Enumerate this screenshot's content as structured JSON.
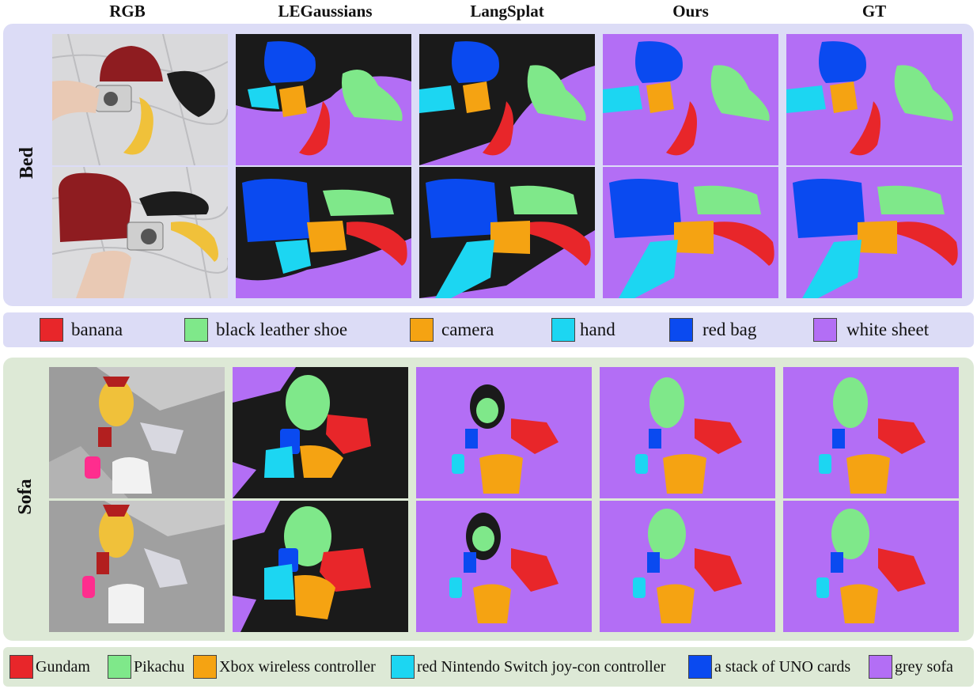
{
  "columns": [
    "RGB",
    "LEGaussians",
    "LangSplat",
    "Ours",
    "GT"
  ],
  "rows": {
    "bed": "Bed",
    "sofa": "Sofa"
  },
  "bed_legend": [
    {
      "label": "banana",
      "color": "#e8262a"
    },
    {
      "label": "black leather shoe",
      "color": "#7fe88a"
    },
    {
      "label": "camera",
      "color": "#f5a312"
    },
    {
      "label": "hand",
      "color": "#1cd6f2"
    },
    {
      "label": "red bag",
      "color": "#0a4af0"
    },
    {
      "label": "white sheet",
      "color": "#b36ef5"
    }
  ],
  "sofa_legend": [
    {
      "label": "Gundam",
      "color": "#e8262a"
    },
    {
      "label": "Pikachu",
      "color": "#7fe88a"
    },
    {
      "label": "Xbox wireless controller",
      "color": "#f5a312"
    },
    {
      "label": "red Nintendo Switch joy-con controller",
      "color": "#1cd6f2"
    },
    {
      "label": "a stack of UNO cards",
      "color": "#0a4af0"
    },
    {
      "label": "grey sofa",
      "color": "#b36ef5"
    }
  ]
}
